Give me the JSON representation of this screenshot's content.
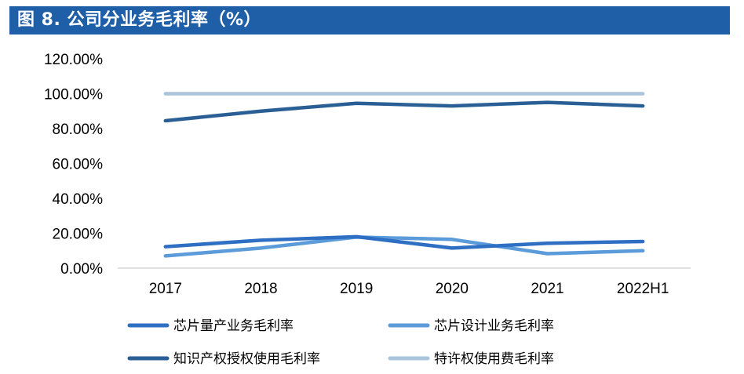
{
  "header": {
    "title": "图 8. 公司分业务毛利率（%）"
  },
  "chart_data": {
    "type": "line",
    "title": "公司分业务毛利率（%）",
    "categories": [
      "2017",
      "2018",
      "2019",
      "2020",
      "2021",
      "2022H1"
    ],
    "ylim": [
      0,
      120
    ],
    "yticks": [
      "0.00%",
      "20.00%",
      "40.00%",
      "60.00%",
      "80.00%",
      "100.00%",
      "120.00%"
    ],
    "ytick_values": [
      0,
      20,
      40,
      60,
      80,
      100,
      120
    ],
    "grid": false,
    "legend_position": "bottom",
    "series": [
      {
        "name": "芯片量产业务毛利率",
        "color": "#2e6fc4",
        "values": [
          12.3,
          16.0,
          18.0,
          11.5,
          14.3,
          15.3
        ]
      },
      {
        "name": "芯片设计业务毛利率",
        "color": "#5b9bd9",
        "values": [
          7.0,
          11.5,
          17.8,
          16.5,
          8.3,
          10.0
        ]
      },
      {
        "name": "知识产权授权使用毛利率",
        "color": "#295f94",
        "values": [
          84.5,
          90.0,
          94.5,
          93.0,
          95.0,
          93.0
        ]
      },
      {
        "name": "特许权使用费毛利率",
        "color": "#a9c4db",
        "values": [
          100.0,
          100.0,
          100.0,
          100.0,
          100.0,
          100.0
        ]
      }
    ]
  }
}
